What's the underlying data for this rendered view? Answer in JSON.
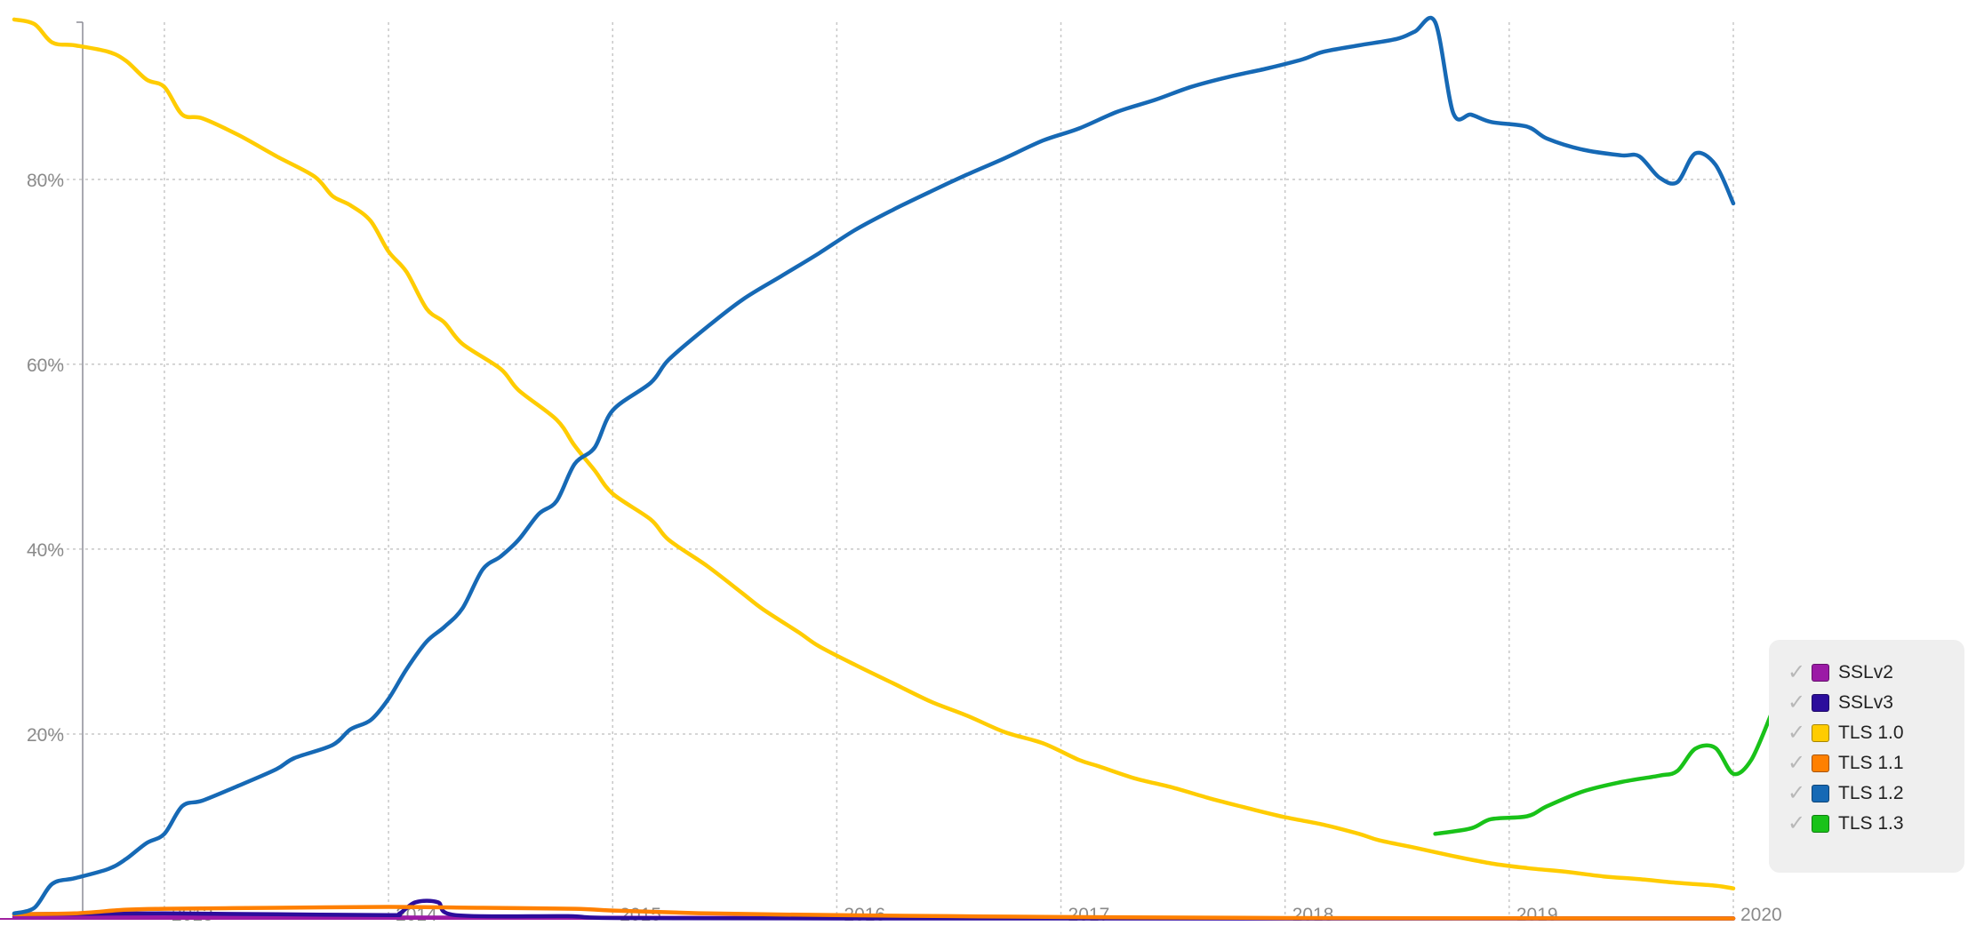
{
  "chart_data": {
    "type": "line",
    "title": "",
    "xlabel": "",
    "ylabel": "",
    "xlim": [
      2012.33,
      2020.0
    ],
    "ylim": [
      0,
      97
    ],
    "x_ticks": [
      {
        "value": 2013,
        "label": "2013"
      },
      {
        "value": 2014,
        "label": "2014"
      },
      {
        "value": 2015,
        "label": "2015"
      },
      {
        "value": 2016,
        "label": "2016"
      },
      {
        "value": 2017,
        "label": "2017"
      },
      {
        "value": 2018,
        "label": "2018"
      },
      {
        "value": 2019,
        "label": "2019"
      },
      {
        "value": 2020,
        "label": "2020"
      }
    ],
    "y_ticks": [
      {
        "value": 20,
        "label": "20%"
      },
      {
        "value": 40,
        "label": "40%"
      },
      {
        "value": 60,
        "label": "60%"
      },
      {
        "value": 80,
        "label": "80%"
      }
    ],
    "grid": true,
    "legend_position": "right",
    "series": [
      {
        "name": "SSLv2",
        "color": "#9b1aa6",
        "points": [
          [
            2012.33,
            0.2
          ],
          [
            2014.0,
            0.15
          ],
          [
            2016.0,
            0.1
          ],
          [
            2018.0,
            0.05
          ],
          [
            2020.0,
            0.05
          ]
        ]
      },
      {
        "name": "SSLv3",
        "color": "#2c0d9c",
        "points": [
          [
            2012.33,
            0.5
          ],
          [
            2013.0,
            0.6
          ],
          [
            2013.5,
            0.5
          ],
          [
            2014.0,
            0.4
          ],
          [
            2014.05,
            0.6
          ],
          [
            2014.12,
            1.8
          ],
          [
            2014.22,
            1.8
          ],
          [
            2014.3,
            0.4
          ],
          [
            2014.8,
            0.3
          ],
          [
            2015.0,
            0.1
          ],
          [
            2016.0,
            0.05
          ],
          [
            2020.0,
            0.05
          ]
        ]
      },
      {
        "name": "TLS 1.0",
        "color": "#ffcc00",
        "points": [
          [
            2012.33,
            97.3
          ],
          [
            2012.42,
            96.8
          ],
          [
            2012.5,
            94.8
          ],
          [
            2012.6,
            94.5
          ],
          [
            2012.75,
            93.8
          ],
          [
            2012.83,
            92.8
          ],
          [
            2012.92,
            90.8
          ],
          [
            2013.0,
            90.0
          ],
          [
            2013.08,
            87.0
          ],
          [
            2013.17,
            86.6
          ],
          [
            2013.33,
            84.8
          ],
          [
            2013.5,
            82.5
          ],
          [
            2013.67,
            80.3
          ],
          [
            2013.75,
            78.2
          ],
          [
            2013.83,
            77.2
          ],
          [
            2013.92,
            75.5
          ],
          [
            2014.0,
            72.2
          ],
          [
            2014.08,
            70.0
          ],
          [
            2014.17,
            66.0
          ],
          [
            2014.25,
            64.5
          ],
          [
            2014.33,
            62.2
          ],
          [
            2014.5,
            59.5
          ],
          [
            2014.58,
            57.2
          ],
          [
            2014.75,
            54.0
          ],
          [
            2014.83,
            51.2
          ],
          [
            2014.92,
            48.5
          ],
          [
            2015.0,
            46.0
          ],
          [
            2015.17,
            43.2
          ],
          [
            2015.25,
            41.0
          ],
          [
            2015.42,
            38.2
          ],
          [
            2015.58,
            35.2
          ],
          [
            2015.67,
            33.5
          ],
          [
            2015.83,
            31.0
          ],
          [
            2015.92,
            29.5
          ],
          [
            2016.08,
            27.5
          ],
          [
            2016.25,
            25.5
          ],
          [
            2016.42,
            23.5
          ],
          [
            2016.58,
            22.0
          ],
          [
            2016.75,
            20.2
          ],
          [
            2016.92,
            19.0
          ],
          [
            2017.08,
            17.2
          ],
          [
            2017.17,
            16.5
          ],
          [
            2017.33,
            15.2
          ],
          [
            2017.5,
            14.2
          ],
          [
            2017.67,
            13.0
          ],
          [
            2017.83,
            12.0
          ],
          [
            2018.0,
            11.0
          ],
          [
            2018.17,
            10.2
          ],
          [
            2018.33,
            9.2
          ],
          [
            2018.42,
            8.5
          ],
          [
            2018.58,
            7.7
          ],
          [
            2018.75,
            6.8
          ],
          [
            2018.92,
            6.0
          ],
          [
            2019.08,
            5.5
          ],
          [
            2019.25,
            5.1
          ],
          [
            2019.42,
            4.6
          ],
          [
            2019.58,
            4.3
          ],
          [
            2019.75,
            3.9
          ],
          [
            2019.92,
            3.6
          ],
          [
            2020.0,
            3.3
          ]
        ]
      },
      {
        "name": "TLS 1.1",
        "color": "#ff8000",
        "points": [
          [
            2012.33,
            0.5
          ],
          [
            2012.6,
            0.6
          ],
          [
            2012.83,
            1.0
          ],
          [
            2013.0,
            1.1
          ],
          [
            2013.5,
            1.2
          ],
          [
            2014.0,
            1.3
          ],
          [
            2014.42,
            1.2
          ],
          [
            2014.83,
            1.1
          ],
          [
            2015.0,
            0.9
          ],
          [
            2015.42,
            0.6
          ],
          [
            2016.0,
            0.4
          ],
          [
            2016.5,
            0.3
          ],
          [
            2017.0,
            0.2
          ],
          [
            2018.0,
            0.1
          ],
          [
            2020.0,
            0.05
          ]
        ]
      },
      {
        "name": "TLS 1.2",
        "color": "#1669b5",
        "points": [
          [
            2012.33,
            0.6
          ],
          [
            2012.42,
            1.2
          ],
          [
            2012.5,
            3.8
          ],
          [
            2012.6,
            4.4
          ],
          [
            2012.75,
            5.4
          ],
          [
            2012.83,
            6.5
          ],
          [
            2012.92,
            8.2
          ],
          [
            2013.0,
            9.2
          ],
          [
            2013.08,
            12.2
          ],
          [
            2013.17,
            12.8
          ],
          [
            2013.33,
            14.4
          ],
          [
            2013.5,
            16.2
          ],
          [
            2013.58,
            17.4
          ],
          [
            2013.75,
            18.8
          ],
          [
            2013.83,
            20.5
          ],
          [
            2013.92,
            21.5
          ],
          [
            2014.0,
            23.8
          ],
          [
            2014.08,
            27.0
          ],
          [
            2014.17,
            30.0
          ],
          [
            2014.25,
            31.6
          ],
          [
            2014.33,
            33.6
          ],
          [
            2014.42,
            37.8
          ],
          [
            2014.5,
            39.2
          ],
          [
            2014.58,
            41.0
          ],
          [
            2014.67,
            43.8
          ],
          [
            2014.75,
            45.2
          ],
          [
            2014.83,
            49.2
          ],
          [
            2014.92,
            51.0
          ],
          [
            2015.0,
            55.0
          ],
          [
            2015.17,
            58.0
          ],
          [
            2015.25,
            60.5
          ],
          [
            2015.42,
            64.0
          ],
          [
            2015.58,
            67.0
          ],
          [
            2015.75,
            69.5
          ],
          [
            2015.92,
            72.0
          ],
          [
            2016.08,
            74.5
          ],
          [
            2016.25,
            76.7
          ],
          [
            2016.42,
            78.7
          ],
          [
            2016.58,
            80.5
          ],
          [
            2016.75,
            82.3
          ],
          [
            2016.92,
            84.2
          ],
          [
            2017.08,
            85.5
          ],
          [
            2017.25,
            87.3
          ],
          [
            2017.42,
            88.6
          ],
          [
            2017.58,
            90.0
          ],
          [
            2017.75,
            91.1
          ],
          [
            2017.92,
            92.0
          ],
          [
            2018.08,
            93.0
          ],
          [
            2018.17,
            93.8
          ],
          [
            2018.33,
            94.5
          ],
          [
            2018.5,
            95.2
          ],
          [
            2018.58,
            96.0
          ],
          [
            2018.67,
            97.0
          ],
          [
            2018.75,
            87.2
          ],
          [
            2018.83,
            87.0
          ],
          [
            2018.92,
            86.2
          ],
          [
            2019.08,
            85.7
          ],
          [
            2019.17,
            84.4
          ],
          [
            2019.33,
            83.2
          ],
          [
            2019.5,
            82.6
          ],
          [
            2019.58,
            82.5
          ],
          [
            2019.67,
            80.2
          ],
          [
            2019.75,
            79.7
          ],
          [
            2019.83,
            82.8
          ],
          [
            2019.92,
            81.6
          ],
          [
            2020.0,
            77.4
          ]
        ]
      },
      {
        "name": "TLS 1.3",
        "color": "#19c219",
        "points": [
          [
            2018.67,
            9.2
          ],
          [
            2018.83,
            9.8
          ],
          [
            2018.92,
            10.8
          ],
          [
            2019.08,
            11.1
          ],
          [
            2019.17,
            12.2
          ],
          [
            2019.33,
            13.8
          ],
          [
            2019.5,
            14.8
          ],
          [
            2019.67,
            15.5
          ],
          [
            2019.75,
            16.0
          ],
          [
            2019.83,
            18.4
          ],
          [
            2019.92,
            18.5
          ],
          [
            2020.0,
            15.7
          ],
          [
            2020.08,
            17.2
          ],
          [
            2020.17,
            22.2
          ]
        ]
      }
    ]
  }
}
